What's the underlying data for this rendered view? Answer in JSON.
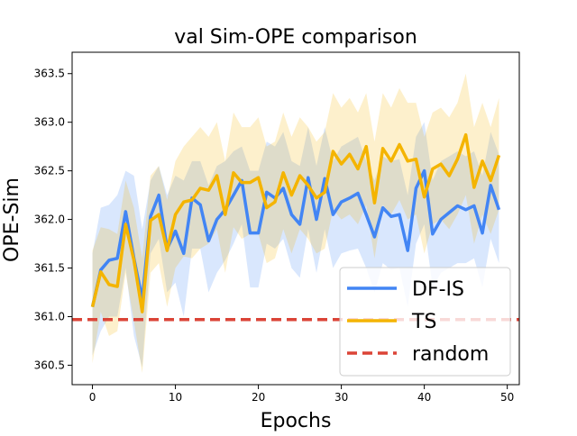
{
  "chart_data": {
    "type": "line",
    "title": "val Sim-OPE comparison",
    "xlabel": "Epochs",
    "ylabel": "OPE-Sim",
    "xlim": [
      -2.45,
      51.45
    ],
    "ylim": [
      360.3,
      363.72
    ],
    "xticks": [
      0,
      10,
      20,
      30,
      40,
      50
    ],
    "yticks": [
      360.5,
      361.0,
      361.5,
      362.0,
      362.5,
      363.0,
      363.5
    ],
    "ytick_labels": [
      "360.5",
      "361.0",
      "361.5",
      "362.0",
      "362.5",
      "363.0",
      "363.5"
    ],
    "legend_position": "lower-right",
    "series": [
      {
        "name": "DF-IS",
        "color": "#4285f4",
        "band_color": "#4285f4",
        "x": [
          0,
          1,
          2,
          3,
          4,
          5,
          6,
          7,
          8,
          9,
          10,
          11,
          12,
          13,
          14,
          15,
          16,
          17,
          18,
          19,
          20,
          21,
          22,
          23,
          24,
          25,
          26,
          27,
          28,
          29,
          30,
          31,
          32,
          33,
          34,
          35,
          36,
          37,
          38,
          39,
          40,
          41,
          42,
          43,
          44,
          45,
          46,
          47,
          48,
          49
        ],
        "values": [
          361.1,
          361.48,
          361.58,
          361.6,
          362.08,
          361.6,
          361.18,
          362.03,
          362.25,
          361.7,
          361.88,
          361.65,
          362.22,
          362.15,
          361.78,
          362.0,
          362.1,
          362.25,
          362.4,
          361.86,
          361.86,
          362.28,
          362.22,
          362.32,
          362.05,
          361.95,
          362.43,
          362.0,
          362.42,
          362.05,
          362.18,
          362.22,
          362.27,
          362.05,
          361.82,
          362.12,
          362.03,
          362.05,
          361.68,
          362.32,
          362.5,
          361.85,
          362.0,
          362.07,
          362.14,
          362.1,
          362.14,
          361.86,
          362.35,
          362.1
        ],
        "upper": [
          361.65,
          362.12,
          362.15,
          362.25,
          362.5,
          362.45,
          361.9,
          362.4,
          362.55,
          362.25,
          362.45,
          362.4,
          362.6,
          362.6,
          362.35,
          362.55,
          362.6,
          362.7,
          362.75,
          362.5,
          362.5,
          362.8,
          362.75,
          362.9,
          362.6,
          362.55,
          362.95,
          362.55,
          362.95,
          362.6,
          362.75,
          362.8,
          362.85,
          362.6,
          362.4,
          362.65,
          362.6,
          362.62,
          362.25,
          362.85,
          363.0,
          362.4,
          362.6,
          362.65,
          362.7,
          362.65,
          362.7,
          362.45,
          362.9,
          362.67
        ],
        "lower": [
          360.6,
          360.85,
          361.0,
          361.0,
          361.5,
          360.8,
          360.48,
          361.65,
          361.8,
          361.25,
          361.35,
          361.0,
          361.7,
          361.7,
          361.25,
          361.45,
          361.58,
          361.75,
          361.95,
          361.3,
          361.3,
          361.75,
          361.7,
          361.8,
          361.5,
          361.4,
          361.9,
          361.45,
          361.9,
          361.5,
          361.65,
          361.68,
          361.7,
          361.5,
          361.25,
          361.55,
          361.48,
          361.5,
          361.1,
          361.75,
          361.95,
          361.3,
          361.45,
          361.5,
          361.55,
          361.55,
          361.6,
          361.3,
          361.8,
          361.55
        ]
      },
      {
        "name": "TS",
        "color": "#f4b400",
        "band_color": "#f4b400",
        "x": [
          0,
          1,
          2,
          3,
          4,
          5,
          6,
          7,
          8,
          9,
          10,
          11,
          12,
          13,
          14,
          15,
          16,
          17,
          18,
          19,
          20,
          21,
          22,
          23,
          24,
          25,
          26,
          27,
          28,
          29,
          30,
          31,
          32,
          33,
          34,
          35,
          36,
          37,
          38,
          39,
          40,
          41,
          42,
          43,
          44,
          45,
          46,
          47,
          48,
          49
        ],
        "values": [
          361.1,
          361.46,
          361.33,
          361.31,
          361.95,
          361.58,
          361.05,
          361.99,
          362.05,
          361.68,
          362.05,
          362.18,
          362.2,
          362.32,
          362.3,
          362.45,
          362.05,
          362.48,
          362.38,
          362.38,
          362.43,
          362.12,
          362.18,
          362.48,
          362.25,
          362.45,
          362.35,
          362.22,
          362.28,
          362.7,
          362.57,
          362.67,
          362.52,
          362.75,
          362.17,
          362.73,
          362.6,
          362.77,
          362.6,
          362.62,
          362.23,
          362.52,
          362.57,
          362.45,
          362.62,
          362.87,
          362.33,
          362.6,
          362.4,
          362.66
        ],
        "upper": [
          361.68,
          361.92,
          361.9,
          361.85,
          362.4,
          362.12,
          361.6,
          362.45,
          362.55,
          362.2,
          362.6,
          362.75,
          362.85,
          362.95,
          362.85,
          363.0,
          362.6,
          363.1,
          362.95,
          362.95,
          363.05,
          362.75,
          362.8,
          363.1,
          362.85,
          363.05,
          362.95,
          362.8,
          362.9,
          363.3,
          363.15,
          363.25,
          363.1,
          363.3,
          362.8,
          363.3,
          363.15,
          363.35,
          363.2,
          363.2,
          362.85,
          363.1,
          363.15,
          363.05,
          363.2,
          363.5,
          362.95,
          363.2,
          362.95,
          363.25
        ],
        "lower": [
          360.52,
          361.05,
          360.8,
          360.85,
          361.45,
          360.95,
          360.42,
          361.45,
          361.55,
          361.1,
          361.5,
          361.62,
          361.6,
          361.7,
          361.75,
          361.9,
          361.45,
          361.92,
          361.8,
          361.85,
          361.85,
          361.55,
          361.6,
          361.9,
          361.65,
          361.9,
          361.8,
          361.65,
          361.7,
          362.1,
          362.0,
          362.05,
          361.95,
          362.15,
          361.6,
          362.15,
          362.05,
          362.2,
          362.0,
          362.05,
          361.65,
          361.95,
          362.0,
          361.9,
          362.05,
          362.25,
          361.75,
          362.05,
          361.85,
          362.1
        ]
      },
      {
        "name": "random",
        "color": "#db4437",
        "dashed": true,
        "x": [
          0,
          49
        ],
        "values": [
          360.97,
          360.97
        ]
      }
    ]
  }
}
